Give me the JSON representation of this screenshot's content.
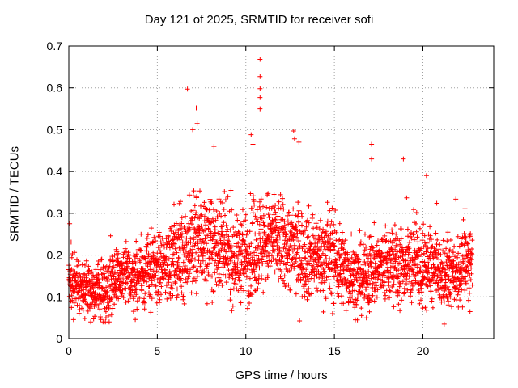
{
  "chart_data": {
    "type": "scatter",
    "title": "Day 121 of 2025, SRMTID for receiver sofi",
    "xlabel": "GPS time / hours",
    "ylabel": "SRMTID / TECUs",
    "xlim": [
      0,
      24
    ],
    "ylim": [
      0,
      0.7
    ],
    "xticks": [
      "0",
      "5",
      "10",
      "15",
      "20"
    ],
    "xtick_values": [
      0,
      5,
      10,
      15,
      20
    ],
    "yticks": [
      "0",
      "0.1",
      "0.2",
      "0.3",
      "0.4",
      "0.5",
      "0.6",
      "0.7"
    ],
    "ytick_values": [
      0,
      0.1,
      0.2,
      0.3,
      0.4,
      0.5,
      0.6,
      0.7
    ],
    "grid": true,
    "marker": "+",
    "series": [
      {
        "name": "SRMTID",
        "color": "#ff0000",
        "x_start": 0.0,
        "x_step": 0.0083,
        "profile": {
          "times": [
            0.0,
            0.5,
            1.0,
            1.5,
            2.0,
            2.5,
            3.0,
            3.5,
            4.0,
            4.5,
            5.0,
            5.5,
            6.0,
            6.5,
            7.0,
            7.5,
            8.0,
            8.5,
            9.0,
            9.5,
            10.0,
            10.5,
            11.0,
            11.5,
            12.0,
            12.5,
            13.0,
            13.5,
            14.0,
            14.5,
            15.0,
            15.5,
            16.0,
            16.5,
            17.0,
            17.5,
            18.0,
            18.5,
            19.0,
            19.5,
            20.0,
            20.5,
            21.0,
            21.5,
            22.0,
            22.5,
            22.8
          ],
          "median": [
            0.15,
            0.13,
            0.12,
            0.11,
            0.12,
            0.14,
            0.15,
            0.15,
            0.15,
            0.17,
            0.16,
            0.18,
            0.19,
            0.2,
            0.22,
            0.24,
            0.22,
            0.22,
            0.2,
            0.19,
            0.2,
            0.22,
            0.23,
            0.24,
            0.22,
            0.22,
            0.21,
            0.2,
            0.19,
            0.2,
            0.19,
            0.17,
            0.15,
            0.14,
            0.16,
            0.17,
            0.18,
            0.17,
            0.18,
            0.18,
            0.17,
            0.17,
            0.15,
            0.15,
            0.16,
            0.18,
            0.19
          ],
          "spread": [
            0.05,
            0.05,
            0.04,
            0.04,
            0.05,
            0.05,
            0.05,
            0.05,
            0.05,
            0.06,
            0.05,
            0.06,
            0.06,
            0.07,
            0.08,
            0.08,
            0.07,
            0.07,
            0.07,
            0.06,
            0.07,
            0.08,
            0.08,
            0.07,
            0.07,
            0.07,
            0.07,
            0.07,
            0.06,
            0.07,
            0.07,
            0.06,
            0.05,
            0.05,
            0.06,
            0.06,
            0.06,
            0.06,
            0.06,
            0.06,
            0.06,
            0.06,
            0.05,
            0.05,
            0.05,
            0.06,
            0.06
          ]
        },
        "peaks": [
          {
            "x": 0.05,
            "y": 0.275
          },
          {
            "x": 6.7,
            "y": 0.597
          },
          {
            "x": 7.0,
            "y": 0.5
          },
          {
            "x": 7.2,
            "y": 0.552
          },
          {
            "x": 7.25,
            "y": 0.515
          },
          {
            "x": 8.2,
            "y": 0.46
          },
          {
            "x": 10.3,
            "y": 0.488
          },
          {
            "x": 10.4,
            "y": 0.465
          },
          {
            "x": 10.8,
            "y": 0.668
          },
          {
            "x": 10.8,
            "y": 0.627
          },
          {
            "x": 10.8,
            "y": 0.598
          },
          {
            "x": 10.8,
            "y": 0.577
          },
          {
            "x": 10.8,
            "y": 0.55
          },
          {
            "x": 12.7,
            "y": 0.497
          },
          {
            "x": 12.75,
            "y": 0.478
          },
          {
            "x": 13.0,
            "y": 0.47
          },
          {
            "x": 17.1,
            "y": 0.465
          },
          {
            "x": 17.1,
            "y": 0.43
          },
          {
            "x": 18.9,
            "y": 0.43
          },
          {
            "x": 20.2,
            "y": 0.39
          },
          {
            "x": 21.2,
            "y": 0.035
          },
          {
            "x": 16.3,
            "y": 0.045
          },
          {
            "x": 2.1,
            "y": 0.05
          }
        ]
      }
    ]
  }
}
